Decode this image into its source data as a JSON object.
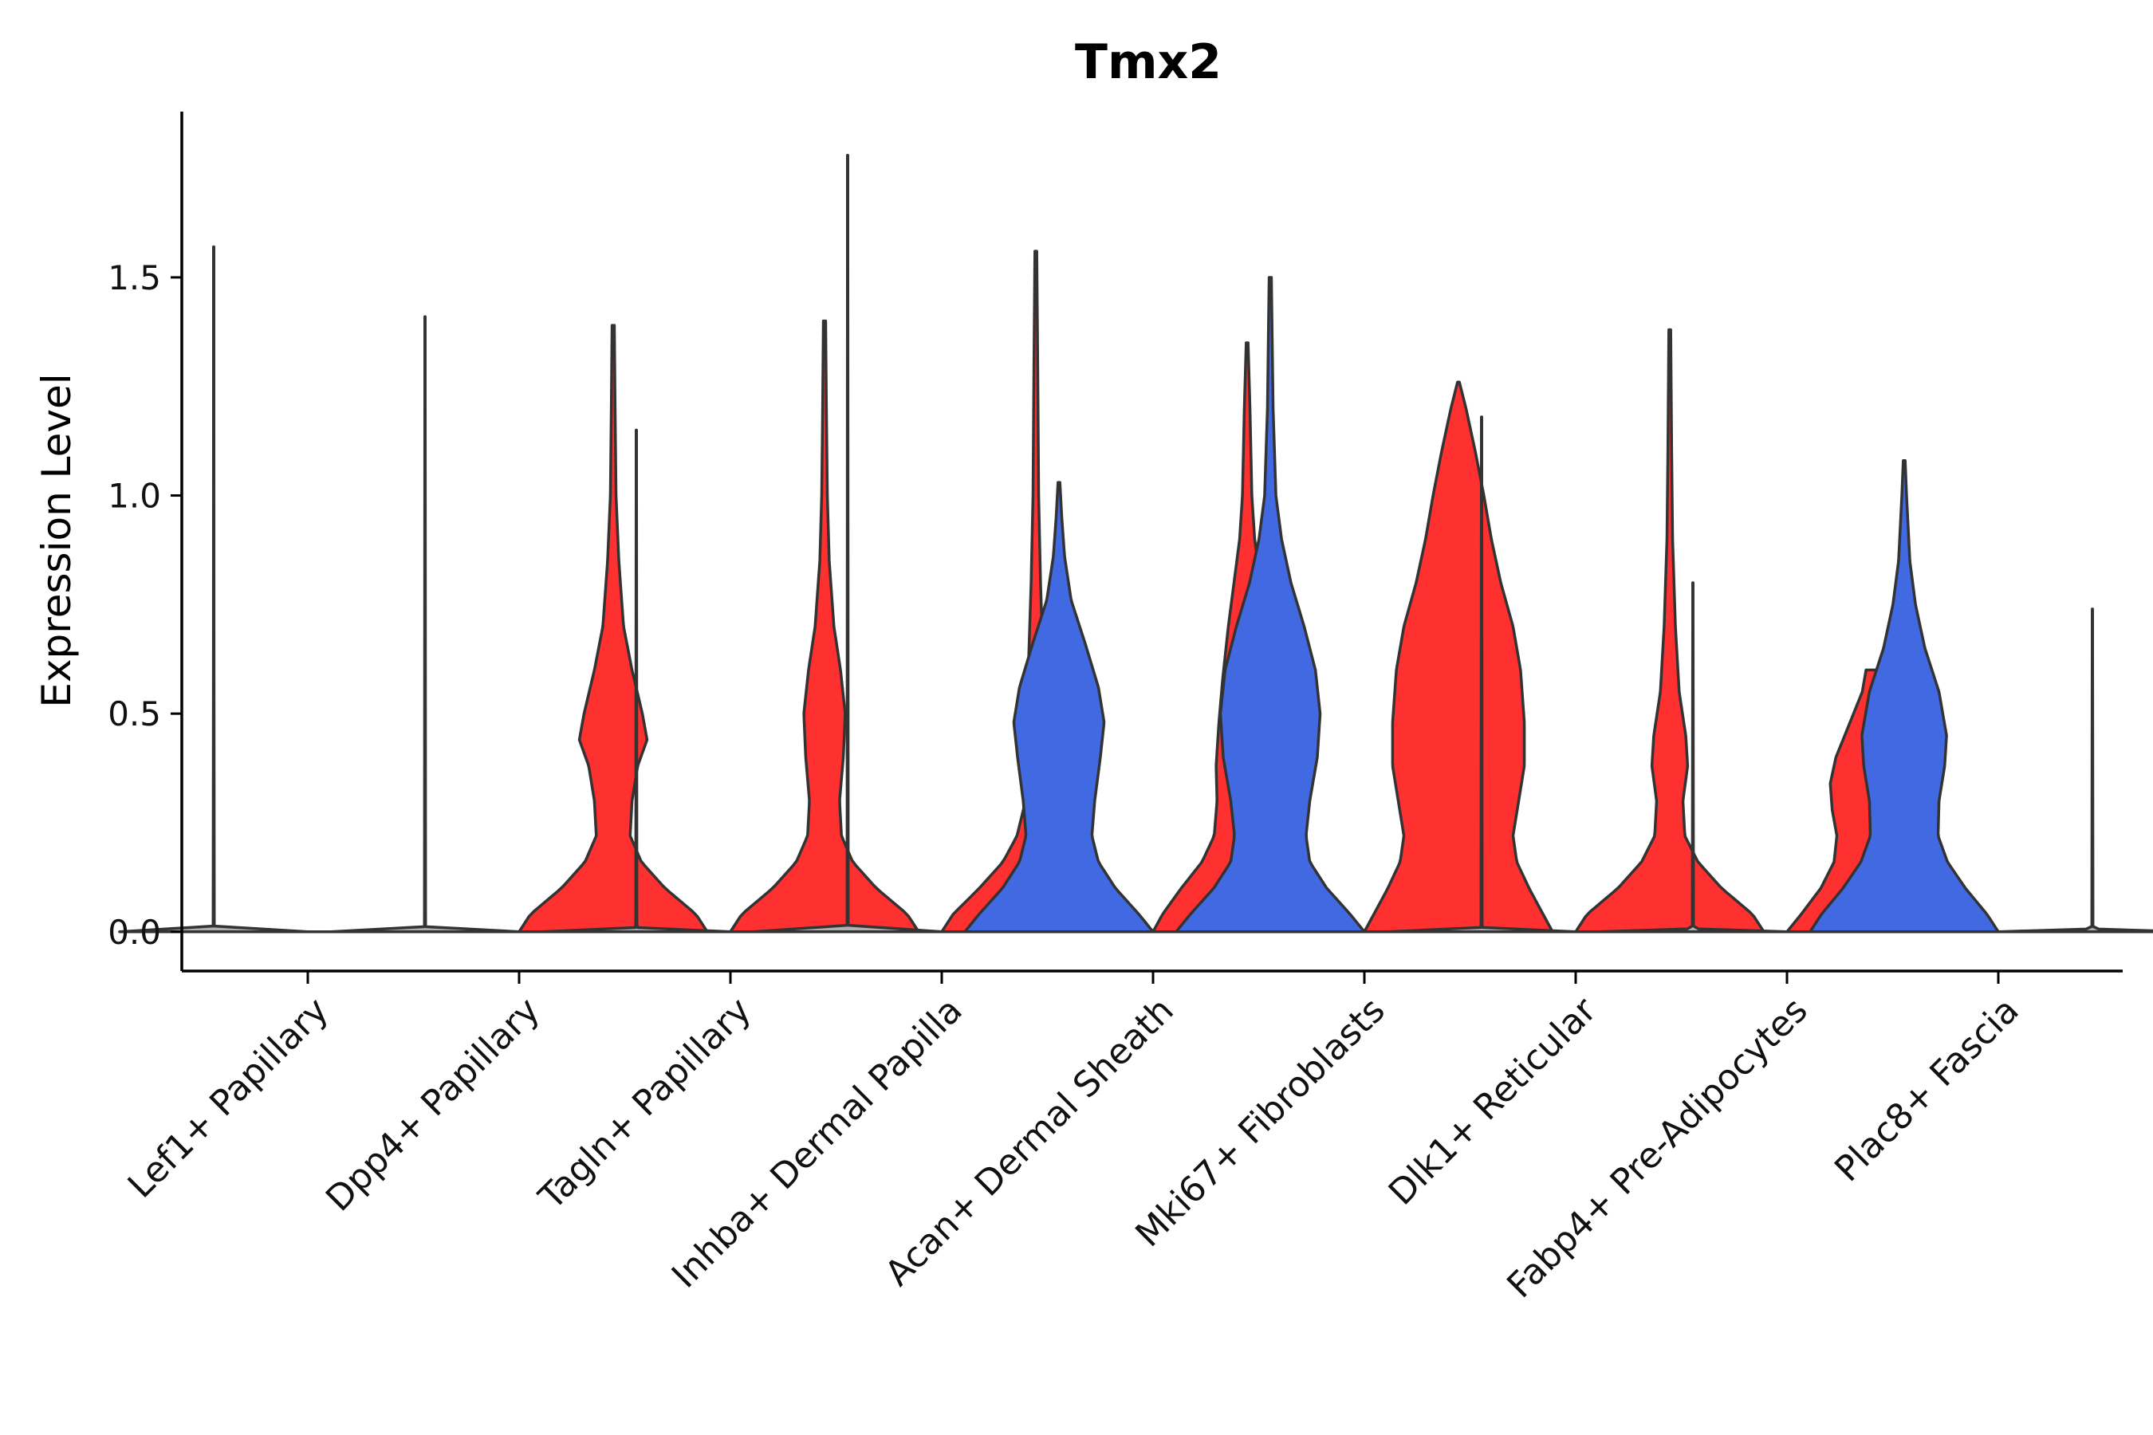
{
  "chart_data": {
    "type": "violin",
    "title": "Tmx2",
    "xlabel": "",
    "ylabel": "Expression Level",
    "ylim": [
      -0.09,
      1.88
    ],
    "yticks": [
      0.0,
      0.5,
      1.0,
      1.5
    ],
    "ytick_labels": [
      "0.0",
      "0.5",
      "1.0",
      "1.5"
    ],
    "categories": [
      "Lef1+ Papillary",
      "Dpp4+ Papillary",
      "Tagln+ Papillary",
      "Inhba+ Dermal Papilla",
      "Acan+ Dermal Sheath",
      "Mki67+ Fibroblasts",
      "Dlk1+ Reticular",
      "Fabp4+ Pre-Adipocytes",
      "Plac8+ Fascia"
    ],
    "colors": {
      "red": "#FF3030",
      "blue": "#4169E1",
      "gray": "#B0B0B0",
      "outline": "#333333"
    },
    "violins": [
      {
        "category": "Lef1+ Papillary",
        "group": "left",
        "color": "#B0B0B0",
        "max": 1.57,
        "profile": [
          [
            0,
            1
          ],
          [
            0.004,
            0.1
          ],
          [
            0.01,
            0.006
          ],
          [
            0.6,
            0.003
          ],
          [
            1.57,
            0.0015
          ]
        ]
      },
      {
        "category": "Lef1+ Papillary",
        "group": "right",
        "color": "#B0B0B0",
        "max": 0.0,
        "profile": [
          [
            0,
            0
          ]
        ]
      },
      {
        "category": "Dpp4+ Papillary",
        "group": "left",
        "color": "#B0B0B0",
        "max": 1.41,
        "profile": [
          [
            0,
            1
          ],
          [
            0.004,
            0.1
          ],
          [
            0.01,
            0.006
          ],
          [
            1.41,
            0.0015
          ]
        ]
      },
      {
        "category": "Dpp4+ Papillary",
        "group": "right",
        "color": "#FF3030",
        "max": 1.39,
        "profile": [
          [
            0,
            1
          ],
          [
            0.04,
            0.88
          ],
          [
            0.1,
            0.55
          ],
          [
            0.16,
            0.3
          ],
          [
            0.22,
            0.18
          ],
          [
            0.3,
            0.2
          ],
          [
            0.38,
            0.26
          ],
          [
            0.44,
            0.36
          ],
          [
            0.5,
            0.31
          ],
          [
            0.6,
            0.2
          ],
          [
            0.7,
            0.11
          ],
          [
            0.85,
            0.06
          ],
          [
            1.0,
            0.03
          ],
          [
            1.2,
            0.02
          ],
          [
            1.39,
            0.012
          ]
        ]
      },
      {
        "category": "Tagln+ Papillary",
        "group": "left",
        "color": "#B0B0B0",
        "max": 1.15,
        "profile": [
          [
            0,
            1
          ],
          [
            0.004,
            0.1
          ],
          [
            0.01,
            0.006
          ],
          [
            1.15,
            0.0015
          ]
        ]
      },
      {
        "category": "Tagln+ Papillary",
        "group": "right",
        "color": "#FF3030",
        "max": 1.4,
        "profile": [
          [
            0,
            1
          ],
          [
            0.04,
            0.88
          ],
          [
            0.1,
            0.55
          ],
          [
            0.16,
            0.3
          ],
          [
            0.22,
            0.18
          ],
          [
            0.3,
            0.16
          ],
          [
            0.4,
            0.2
          ],
          [
            0.5,
            0.22
          ],
          [
            0.6,
            0.17
          ],
          [
            0.7,
            0.1
          ],
          [
            0.85,
            0.05
          ],
          [
            1.0,
            0.03
          ],
          [
            1.2,
            0.02
          ],
          [
            1.4,
            0.012
          ]
        ]
      },
      {
        "category": "Inhba+ Dermal Papilla",
        "group": "left",
        "color": "#B0B0B0",
        "max": 1.78,
        "profile": [
          [
            0,
            1
          ],
          [
            0.004,
            0.1
          ],
          [
            0.01,
            0.006
          ],
          [
            1.78,
            0.0015
          ]
        ]
      },
      {
        "category": "Inhba+ Dermal Papilla",
        "group": "right",
        "color": "#FF3030",
        "max": 1.56,
        "profile": [
          [
            0,
            1
          ],
          [
            0.04,
            0.88
          ],
          [
            0.1,
            0.6
          ],
          [
            0.16,
            0.35
          ],
          [
            0.22,
            0.2
          ],
          [
            0.3,
            0.11
          ],
          [
            0.45,
            0.07
          ],
          [
            0.6,
            0.08
          ],
          [
            0.8,
            0.05
          ],
          [
            1.0,
            0.03
          ],
          [
            1.3,
            0.02
          ],
          [
            1.56,
            0.01
          ]
        ]
      },
      {
        "category": "Acan+ Dermal Sheath",
        "group": "left",
        "color": "#4169E1",
        "max": 1.03,
        "profile": [
          [
            0,
            1
          ],
          [
            0.04,
            0.85
          ],
          [
            0.1,
            0.6
          ],
          [
            0.16,
            0.42
          ],
          [
            0.22,
            0.35
          ],
          [
            0.3,
            0.38
          ],
          [
            0.4,
            0.44
          ],
          [
            0.48,
            0.48
          ],
          [
            0.56,
            0.42
          ],
          [
            0.66,
            0.28
          ],
          [
            0.76,
            0.13
          ],
          [
            0.86,
            0.06
          ],
          [
            0.95,
            0.03
          ],
          [
            1.03,
            0.01
          ]
        ]
      },
      {
        "category": "Acan+ Dermal Sheath",
        "group": "right",
        "color": "#FF3030",
        "max": 1.35,
        "profile": [
          [
            0,
            1
          ],
          [
            0.04,
            0.9
          ],
          [
            0.1,
            0.7
          ],
          [
            0.16,
            0.48
          ],
          [
            0.22,
            0.35
          ],
          [
            0.3,
            0.32
          ],
          [
            0.38,
            0.33
          ],
          [
            0.48,
            0.3
          ],
          [
            0.58,
            0.26
          ],
          [
            0.7,
            0.2
          ],
          [
            0.8,
            0.14
          ],
          [
            0.9,
            0.08
          ],
          [
            1.0,
            0.05
          ],
          [
            1.2,
            0.03
          ],
          [
            1.35,
            0.01
          ]
        ]
      },
      {
        "category": "Mki67+ Fibroblasts",
        "group": "left",
        "color": "#4169E1",
        "max": 1.5,
        "profile": [
          [
            0,
            1
          ],
          [
            0.04,
            0.85
          ],
          [
            0.1,
            0.6
          ],
          [
            0.16,
            0.42
          ],
          [
            0.22,
            0.38
          ],
          [
            0.3,
            0.42
          ],
          [
            0.4,
            0.5
          ],
          [
            0.5,
            0.53
          ],
          [
            0.6,
            0.48
          ],
          [
            0.7,
            0.36
          ],
          [
            0.8,
            0.22
          ],
          [
            0.9,
            0.12
          ],
          [
            1.0,
            0.06
          ],
          [
            1.2,
            0.03
          ],
          [
            1.5,
            0.012
          ]
        ]
      },
      {
        "category": "Mki67+ Fibroblasts",
        "group": "right",
        "color": "#FF3030",
        "max": 1.26,
        "profile": [
          [
            0,
            1
          ],
          [
            0.04,
            0.9
          ],
          [
            0.1,
            0.75
          ],
          [
            0.16,
            0.62
          ],
          [
            0.22,
            0.58
          ],
          [
            0.3,
            0.64
          ],
          [
            0.38,
            0.7
          ],
          [
            0.48,
            0.7
          ],
          [
            0.6,
            0.66
          ],
          [
            0.7,
            0.58
          ],
          [
            0.8,
            0.45
          ],
          [
            0.9,
            0.35
          ],
          [
            1.0,
            0.27
          ],
          [
            1.1,
            0.18
          ],
          [
            1.2,
            0.08
          ],
          [
            1.26,
            0.01
          ]
        ]
      },
      {
        "category": "Dlk1+ Reticular",
        "group": "left",
        "color": "#B0B0B0",
        "max": 1.18,
        "profile": [
          [
            0,
            1
          ],
          [
            0.004,
            0.1
          ],
          [
            0.01,
            0.006
          ],
          [
            1.18,
            0.0015
          ]
        ]
      },
      {
        "category": "Dlk1+ Reticular",
        "group": "right",
        "color": "#FF3030",
        "max": 1.38,
        "profile": [
          [
            0,
            1
          ],
          [
            0.04,
            0.88
          ],
          [
            0.1,
            0.55
          ],
          [
            0.16,
            0.3
          ],
          [
            0.22,
            0.16
          ],
          [
            0.3,
            0.14
          ],
          [
            0.38,
            0.19
          ],
          [
            0.45,
            0.17
          ],
          [
            0.55,
            0.1
          ],
          [
            0.7,
            0.06
          ],
          [
            0.9,
            0.03
          ],
          [
            1.1,
            0.02
          ],
          [
            1.38,
            0.01
          ]
        ]
      },
      {
        "category": "Fabp4+ Pre-Adipocytes",
        "group": "left",
        "color": "#B0B0B0",
        "max": 0.8,
        "profile": [
          [
            0,
            1
          ],
          [
            0.004,
            0.1
          ],
          [
            0.01,
            0.006
          ],
          [
            0.8,
            0.0015
          ]
        ]
      },
      {
        "category": "Fabp4+ Pre-Adipocytes",
        "group": "right",
        "color": "#FF3030",
        "max": 0.6,
        "profile": [
          [
            0,
            1
          ],
          [
            0.04,
            0.85
          ],
          [
            0.1,
            0.64
          ],
          [
            0.16,
            0.5
          ],
          [
            0.22,
            0.47
          ],
          [
            0.28,
            0.52
          ],
          [
            0.34,
            0.54
          ],
          [
            0.4,
            0.48
          ],
          [
            0.48,
            0.33
          ],
          [
            0.55,
            0.2
          ],
          [
            0.6,
            0.16
          ]
        ]
      },
      {
        "category": "Plac8+ Fascia",
        "group": "left",
        "color": "#4169E1",
        "max": 1.08,
        "profile": [
          [
            0,
            1
          ],
          [
            0.04,
            0.88
          ],
          [
            0.1,
            0.65
          ],
          [
            0.16,
            0.46
          ],
          [
            0.22,
            0.36
          ],
          [
            0.3,
            0.37
          ],
          [
            0.38,
            0.43
          ],
          [
            0.45,
            0.45
          ],
          [
            0.55,
            0.37
          ],
          [
            0.65,
            0.22
          ],
          [
            0.75,
            0.12
          ],
          [
            0.85,
            0.06
          ],
          [
            1.0,
            0.025
          ],
          [
            1.08,
            0.01
          ]
        ]
      },
      {
        "category": "Plac8+ Fascia",
        "group": "right",
        "color": "#B0B0B0",
        "max": 0.74,
        "profile": [
          [
            0,
            1
          ],
          [
            0.004,
            0.1
          ],
          [
            0.01,
            0.006
          ],
          [
            0.74,
            0.0015
          ]
        ]
      }
    ]
  }
}
